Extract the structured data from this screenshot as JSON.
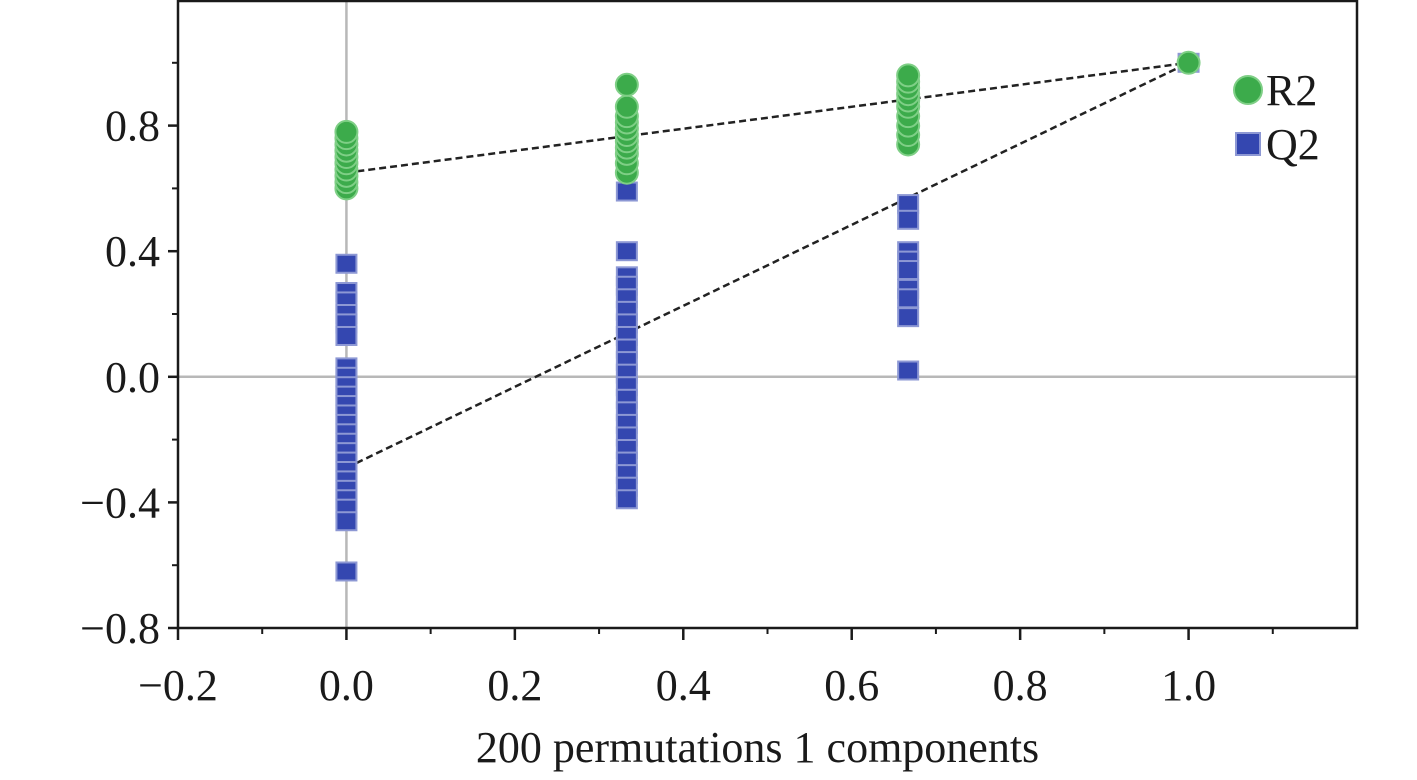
{
  "chart_data": {
    "type": "scatter",
    "title": "",
    "xlabel": "200 permutations 1 components",
    "ylabel": "",
    "xlim": [
      -0.2,
      1.2
    ],
    "ylim": [
      -0.8,
      1.2
    ],
    "x_ticks": [
      -0.2,
      0.0,
      0.2,
      0.4,
      0.6,
      0.8,
      1.0
    ],
    "x_tick_labels": [
      "−0.2",
      "0.0",
      "0.2",
      "0.4",
      "0.6",
      "0.8",
      "1.0"
    ],
    "y_ticks": [
      -0.8,
      -0.4,
      0.0,
      0.4,
      0.8
    ],
    "y_tick_labels": [
      "−0.8",
      "−0.4",
      "0.0",
      "0.4",
      "0.8"
    ],
    "reference_lines": {
      "x": 0.0,
      "y": 0.0
    },
    "legend_position": "top-right",
    "series": [
      {
        "name": "R2",
        "marker": "circle",
        "color": "#3cab4b",
        "points": [
          [
            0.0,
            0.6
          ],
          [
            0.0,
            0.62
          ],
          [
            0.0,
            0.64
          ],
          [
            0.0,
            0.66
          ],
          [
            0.0,
            0.68
          ],
          [
            0.0,
            0.7
          ],
          [
            0.0,
            0.72
          ],
          [
            0.0,
            0.74
          ],
          [
            0.0,
            0.76
          ],
          [
            0.0,
            0.78
          ],
          [
            0.333,
            0.65
          ],
          [
            0.333,
            0.68
          ],
          [
            0.333,
            0.71
          ],
          [
            0.333,
            0.73
          ],
          [
            0.333,
            0.75
          ],
          [
            0.333,
            0.77
          ],
          [
            0.333,
            0.79
          ],
          [
            0.333,
            0.81
          ],
          [
            0.333,
            0.83
          ],
          [
            0.333,
            0.86
          ],
          [
            0.333,
            0.93
          ],
          [
            0.667,
            0.74
          ],
          [
            0.667,
            0.77
          ],
          [
            0.667,
            0.8
          ],
          [
            0.667,
            0.83
          ],
          [
            0.667,
            0.86
          ],
          [
            0.667,
            0.88
          ],
          [
            0.667,
            0.9
          ],
          [
            0.667,
            0.92
          ],
          [
            0.667,
            0.94
          ],
          [
            0.667,
            0.96
          ],
          [
            1.0,
            1.0
          ]
        ],
        "regression": {
          "from": [
            0.0,
            0.65
          ],
          "to": [
            1.0,
            1.0
          ]
        }
      },
      {
        "name": "Q2",
        "marker": "square",
        "color": "#3447b0",
        "points": [
          [
            0.0,
            0.36
          ],
          [
            0.0,
            0.27
          ],
          [
            0.0,
            0.24
          ],
          [
            0.0,
            0.2
          ],
          [
            0.0,
            0.17
          ],
          [
            0.0,
            0.13
          ],
          [
            0.0,
            0.03
          ],
          [
            0.0,
            0.0
          ],
          [
            0.0,
            -0.03
          ],
          [
            0.0,
            -0.06
          ],
          [
            0.0,
            -0.09
          ],
          [
            0.0,
            -0.12
          ],
          [
            0.0,
            -0.15
          ],
          [
            0.0,
            -0.18
          ],
          [
            0.0,
            -0.21
          ],
          [
            0.0,
            -0.24
          ],
          [
            0.0,
            -0.27
          ],
          [
            0.0,
            -0.3
          ],
          [
            0.0,
            -0.33
          ],
          [
            0.0,
            -0.36
          ],
          [
            0.0,
            -0.39
          ],
          [
            0.0,
            -0.42
          ],
          [
            0.0,
            -0.46
          ],
          [
            0.0,
            -0.62
          ],
          [
            0.333,
            0.59
          ],
          [
            0.333,
            0.4
          ],
          [
            0.333,
            0.32
          ],
          [
            0.333,
            0.29
          ],
          [
            0.333,
            0.25
          ],
          [
            0.333,
            0.21
          ],
          [
            0.333,
            0.17
          ],
          [
            0.333,
            0.13
          ],
          [
            0.333,
            0.09
          ],
          [
            0.333,
            0.05
          ],
          [
            0.333,
            0.01
          ],
          [
            0.333,
            -0.03
          ],
          [
            0.333,
            -0.07
          ],
          [
            0.333,
            -0.11
          ],
          [
            0.333,
            -0.15
          ],
          [
            0.333,
            -0.19
          ],
          [
            0.333,
            -0.23
          ],
          [
            0.333,
            -0.27
          ],
          [
            0.333,
            -0.31
          ],
          [
            0.333,
            -0.35
          ],
          [
            0.333,
            -0.39
          ],
          [
            0.667,
            0.55
          ],
          [
            0.667,
            0.5
          ],
          [
            0.667,
            0.4
          ],
          [
            0.667,
            0.37
          ],
          [
            0.667,
            0.34
          ],
          [
            0.667,
            0.28
          ],
          [
            0.667,
            0.25
          ],
          [
            0.667,
            0.19
          ],
          [
            0.667,
            0.02
          ],
          [
            1.0,
            1.0
          ]
        ],
        "regression": {
          "from": [
            0.0,
            -0.29
          ],
          "to": [
            1.0,
            1.0
          ]
        }
      }
    ]
  }
}
